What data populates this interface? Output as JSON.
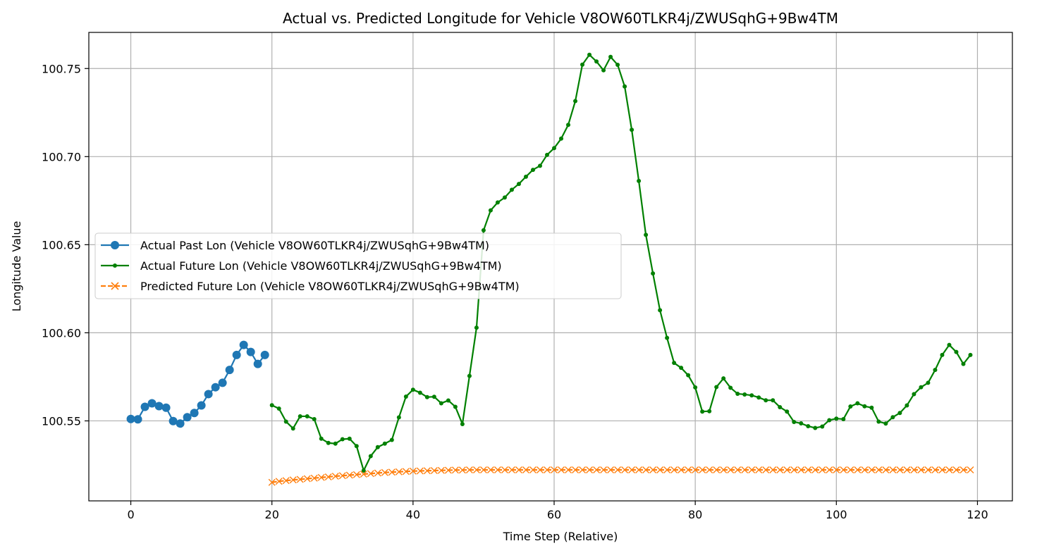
{
  "chart_data": {
    "type": "line",
    "title": "Actual vs. Predicted Longitude for Vehicle V8OW60TLKR4j/ZWUSqhG+9Bw4TM",
    "xlabel": "Time Step (Relative)",
    "ylabel": "Longitude Value",
    "xlim": [
      -5.95,
      124.95
    ],
    "ylim": [
      100.5046,
      100.7705
    ],
    "xticks": [
      0,
      20,
      40,
      60,
      80,
      100,
      120
    ],
    "yticks": [
      100.55,
      100.6,
      100.65,
      100.7,
      100.75
    ],
    "ytick_labels": [
      "100.55",
      "100.60",
      "100.65",
      "100.70",
      "100.75"
    ],
    "grid": true,
    "legend_position": "center-left",
    "series": [
      {
        "name": "Actual Past Lon (Vehicle V8OW60TLKR4j/ZWUSqhG+9Bw4TM)",
        "color": "#1f77b4",
        "marker": "circle-large",
        "linestyle": "solid",
        "x_start": 0,
        "values": [
          100.5511,
          100.5509,
          100.558,
          100.56,
          100.5584,
          100.5575,
          100.5499,
          100.5485,
          100.5521,
          100.5545,
          100.5588,
          100.5652,
          100.5691,
          100.5716,
          100.5789,
          100.5874,
          100.5931,
          100.5891,
          100.5823,
          100.5874
        ]
      },
      {
        "name": "Actual Future Lon (Vehicle V8OW60TLKR4j/ZWUSqhG+9Bw4TM)",
        "color": "#008000",
        "marker": "circle-small",
        "linestyle": "solid",
        "x_start": 20,
        "values": [
          100.5589,
          100.557,
          100.5496,
          100.5457,
          100.5526,
          100.5526,
          100.551,
          100.5399,
          100.5375,
          100.5371,
          100.5396,
          100.5399,
          100.5357,
          100.5218,
          100.53,
          100.5351,
          100.5371,
          100.5392,
          100.552,
          100.5638,
          100.5677,
          100.566,
          100.5635,
          100.5637,
          100.56,
          100.5616,
          100.558,
          100.5482,
          100.5755,
          100.6029,
          100.6582,
          100.6695,
          100.674,
          100.6768,
          100.6812,
          100.6845,
          100.6886,
          100.6925,
          100.6948,
          100.701,
          100.7048,
          100.7102,
          100.718,
          100.7315,
          100.7522,
          100.7578,
          100.754,
          100.749,
          100.7566,
          100.7521,
          100.7398,
          100.7152,
          100.6862,
          100.6556,
          100.6337,
          100.6128,
          100.5971,
          100.5829,
          100.5801,
          100.5759,
          100.569,
          100.5553,
          100.5555,
          100.5692,
          100.5741,
          100.5688,
          100.5654,
          100.565,
          100.5645,
          100.5633,
          100.5617,
          100.5617,
          100.5578,
          100.5553,
          100.5494,
          100.5486,
          100.547,
          100.546,
          100.5468,
          100.5504,
          100.5513,
          100.551,
          100.5582,
          100.56,
          100.5583,
          100.5575,
          100.5496,
          100.5485,
          100.5521,
          100.5545,
          100.5588,
          100.5652,
          100.5691,
          100.5716,
          100.5789,
          100.5874,
          100.5931,
          100.5891,
          100.5823,
          100.5874
        ]
      },
      {
        "name": "Predicted Future Lon (Vehicle V8OW60TLKR4j/ZWUSqhG+9Bw4TM)",
        "color": "#ff7f0e",
        "marker": "x",
        "linestyle": "dashed",
        "x_start": 20,
        "values": [
          100.5151,
          100.5157,
          100.5161,
          100.5165,
          100.5168,
          100.5172,
          100.5175,
          100.5179,
          100.5182,
          100.5186,
          100.5189,
          100.5192,
          100.5195,
          100.5198,
          100.5201,
          100.5204,
          100.5207,
          100.5209,
          100.5211,
          100.5213,
          100.5215,
          100.5216,
          100.5217,
          100.5218,
          100.5219,
          100.522,
          100.5221,
          100.5221,
          100.5222,
          100.5222,
          100.5222,
          100.5222,
          100.5222,
          100.5222,
          100.5222,
          100.5222,
          100.5222,
          100.5222,
          100.5222,
          100.5222,
          100.5222,
          100.5222,
          100.5222,
          100.5222,
          100.5222,
          100.5222,
          100.5222,
          100.5222,
          100.5222,
          100.5222,
          100.5222,
          100.5222,
          100.5222,
          100.5222,
          100.5222,
          100.5222,
          100.5222,
          100.5222,
          100.5222,
          100.5222,
          100.5222,
          100.5222,
          100.5222,
          100.5222,
          100.5222,
          100.5222,
          100.5222,
          100.5222,
          100.5222,
          100.5222,
          100.5222,
          100.5222,
          100.5222,
          100.5222,
          100.5222,
          100.5222,
          100.5222,
          100.5222,
          100.5222,
          100.5222,
          100.5222,
          100.5222,
          100.5222,
          100.5222,
          100.5222,
          100.5222,
          100.5222,
          100.5222,
          100.5222,
          100.5222,
          100.5222,
          100.5222,
          100.5222,
          100.5222,
          100.5222,
          100.5222,
          100.5222,
          100.5222,
          100.5222,
          100.5222
        ]
      }
    ]
  }
}
